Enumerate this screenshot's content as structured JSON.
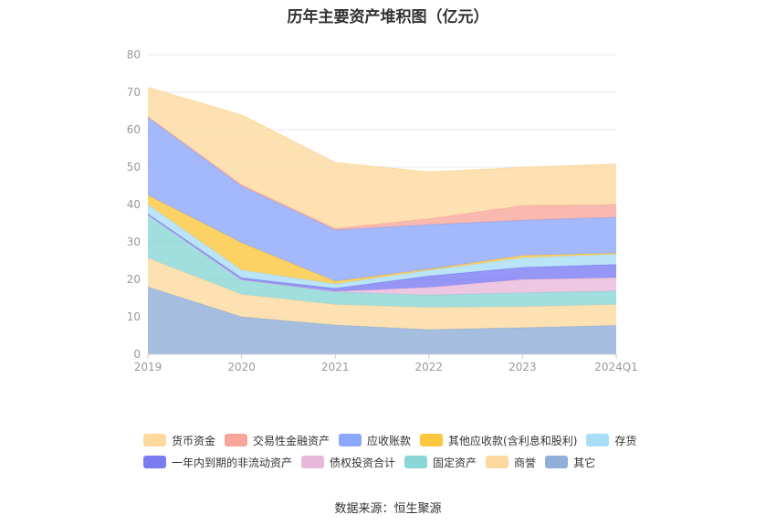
{
  "chart_data": {
    "type": "area",
    "title": "历年主要资产堆积图（亿元）",
    "source": "数据来源：恒生聚源",
    "categories": [
      "2019",
      "2020",
      "2021",
      "2022",
      "2023",
      "2024Q1"
    ],
    "yticks": [
      "0",
      "10",
      "20",
      "30",
      "40",
      "50",
      "60",
      "70",
      "80"
    ],
    "ylim": [
      0,
      80
    ],
    "stacked": true,
    "grid": true,
    "legend_position": "bottom",
    "series": [
      {
        "name": "其它",
        "color": "#8faed8",
        "values": [
          18.0,
          10.0,
          7.8,
          6.6,
          7.1,
          7.7
        ]
      },
      {
        "name": "商誉",
        "color": "#fdd9a0",
        "values": [
          7.7,
          6.0,
          5.5,
          5.9,
          5.6,
          5.6
        ]
      },
      {
        "name": "固定资产",
        "color": "#8ad6d6",
        "values": [
          11.5,
          3.9,
          3.3,
          3.3,
          3.7,
          3.6
        ]
      },
      {
        "name": "债权投资合计",
        "color": "#e8b8da",
        "values": [
          0.0,
          0.0,
          0.2,
          2.1,
          3.6,
          3.6
        ]
      },
      {
        "name": "一年内到期的非流动资产",
        "color": "#7b7cf2",
        "values": [
          0.3,
          0.5,
          0.8,
          3.0,
          3.2,
          3.5
        ]
      },
      {
        "name": "存货",
        "color": "#a9ddf5",
        "values": [
          2.5,
          2.1,
          1.2,
          1.5,
          2.6,
          2.7
        ]
      },
      {
        "name": "其他应收款(含利息和股利)",
        "color": "#fcc73f",
        "values": [
          2.5,
          7.3,
          0.7,
          0.3,
          0.6,
          0.3
        ]
      },
      {
        "name": "应收账款",
        "color": "#8ca8fa",
        "values": [
          20.8,
          15.1,
          13.7,
          11.9,
          9.4,
          9.6
        ]
      },
      {
        "name": "交易性金融资产",
        "color": "#f8a69c",
        "values": [
          0.2,
          0.4,
          0.4,
          1.6,
          3.9,
          3.4
        ]
      },
      {
        "name": "货币资金",
        "color": "#fdd9a0",
        "values": [
          7.8,
          18.6,
          17.6,
          12.5,
          10.2,
          10.8
        ]
      }
    ],
    "legend_rows": [
      [
        "货币资金",
        "交易性金融资产",
        "应收账款",
        "其他应收款(含利息和股利)",
        "存货"
      ],
      [
        "一年内到期的非流动资产",
        "债权投资合计",
        "固定资产",
        "商誉",
        "其它"
      ]
    ]
  }
}
